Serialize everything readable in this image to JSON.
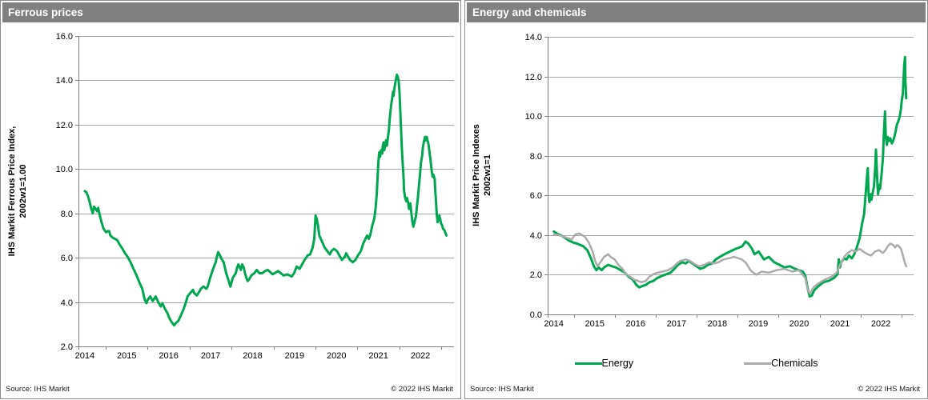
{
  "colors": {
    "header_bg": "#808080",
    "green": "#00A651",
    "gray": "#ABABAB",
    "grid": "#A6A6A6",
    "axis": "#808080"
  },
  "panels": [
    {
      "title": "Ferrous prices",
      "ylabel_line1": "IHS Markit Ferrous Price Index,",
      "ylabel_line2": "2002w1=1.00",
      "source": "Source:  IHS Markit",
      "copyright": "© 2022  IHS Markit"
    },
    {
      "title": "Energy and chemicals",
      "ylabel_line1": "IHS Markit Price Indexes",
      "ylabel_line2": "2002w1=1",
      "source": "Source:  IHS Markit",
      "copyright": "© 2022  IHS Markit"
    }
  ],
  "chart_data": [
    {
      "type": "line",
      "title": "Ferrous prices",
      "xlabel": "",
      "ylabel": "IHS Markit Ferrous Price Index, 2002w1=1.00",
      "xlim": [
        2013.85,
        2022.8
      ],
      "ylim": [
        2.0,
        16.0
      ],
      "yticks": [
        2,
        4,
        6,
        8,
        10,
        12,
        14,
        16
      ],
      "ytick_labels": [
        "2.0",
        "4.0",
        "6.0",
        "8.0",
        "10.0",
        "12.0",
        "14.0",
        "16.0"
      ],
      "xticks": [
        2014,
        2015,
        2016,
        2017,
        2018,
        2019,
        2020,
        2021,
        2022
      ],
      "xtick_labels": [
        "2014",
        "2015",
        "2016",
        "2017",
        "2018",
        "2019",
        "2020",
        "2021",
        "2022"
      ],
      "grid": true,
      "legend": null,
      "series": [
        {
          "name": "Ferrous price index",
          "color": "#00A651",
          "stroke_width": 3,
          "x": [
            2014.0,
            2014.04,
            2014.08,
            2014.12,
            2014.15,
            2014.19,
            2014.22,
            2014.26,
            2014.29,
            2014.32,
            2014.36,
            2014.4,
            2014.45,
            2014.51,
            2014.55,
            2014.58,
            2014.61,
            2014.67,
            2014.72,
            2014.77,
            2014.83,
            2014.9,
            2014.96,
            2015.02,
            2015.09,
            2015.15,
            2015.21,
            2015.28,
            2015.31,
            2015.37,
            2015.4,
            2015.43,
            2015.47,
            2015.5,
            2015.56,
            2015.62,
            2015.69,
            2015.75,
            2015.81,
            2015.85,
            2015.91,
            2015.97,
            2016.01,
            2016.07,
            2016.13,
            2016.17,
            2016.23,
            2016.29,
            2016.36,
            2016.42,
            2016.45,
            2016.51,
            2016.58,
            2016.61,
            2016.67,
            2016.74,
            2016.77,
            2016.83,
            2016.9,
            2016.93,
            2016.99,
            2017.05,
            2017.12,
            2017.15,
            2017.18,
            2017.21,
            2017.26,
            2017.31,
            2017.37,
            2017.44,
            2017.47,
            2017.5,
            2017.53,
            2017.6,
            2017.63,
            2017.66,
            2017.72,
            2017.75,
            2017.79,
            2017.82,
            2017.85,
            2017.88,
            2017.91,
            2017.97,
            2018.04,
            2018.1,
            2018.16,
            2018.23,
            2018.3,
            2018.36,
            2018.48,
            2018.61,
            2018.74,
            2018.83,
            2018.93,
            2018.99,
            2019.05,
            2019.12,
            2019.18,
            2019.24,
            2019.31,
            2019.37,
            2019.43,
            2019.47,
            2019.5,
            2019.53,
            2019.56,
            2019.59,
            2019.66,
            2019.72,
            2019.78,
            2019.84,
            2019.88,
            2019.94,
            2020.01,
            2020.07,
            2020.13,
            2020.2,
            2020.23,
            2020.26,
            2020.32,
            2020.39,
            2020.45,
            2020.51,
            2020.58,
            2020.64,
            2020.7,
            2020.73,
            2020.77,
            2020.8,
            2020.83,
            2020.86,
            2020.9,
            2020.93,
            2020.96,
            2020.98,
            2021.0,
            2021.02,
            2021.04,
            2021.06,
            2021.09,
            2021.1,
            2021.12,
            2021.14,
            2021.16,
            2021.18,
            2021.2,
            2021.22,
            2021.25,
            2021.27,
            2021.3,
            2021.33,
            2021.35,
            2021.36,
            2021.38,
            2021.4,
            2021.42,
            2021.44,
            2021.46,
            2021.48,
            2021.5,
            2021.52,
            2021.54,
            2021.56,
            2021.58,
            2021.6,
            2021.61,
            2021.63,
            2021.66,
            2021.68,
            2021.71,
            2021.73,
            2021.76,
            2021.78,
            2021.81,
            2021.83,
            2021.86,
            2021.89,
            2021.91,
            2021.94,
            2021.96,
            2021.99,
            2022.01,
            2022.04,
            2022.06,
            2022.09,
            2022.11,
            2022.13,
            2022.15,
            2022.16,
            2022.19,
            2022.21,
            2022.24,
            2022.27,
            2022.29,
            2022.31,
            2022.34,
            2022.35,
            2022.37,
            2022.39,
            2022.41,
            2022.43,
            2022.45,
            2022.47,
            2022.49,
            2022.52,
            2022.54,
            2022.57,
            2022.59,
            2022.62
          ],
          "y": [
            9.0,
            8.95,
            8.75,
            8.5,
            8.25,
            8.0,
            8.3,
            8.2,
            8.1,
            8.25,
            7.9,
            7.6,
            7.3,
            7.15,
            7.2,
            7.2,
            7.0,
            6.9,
            6.85,
            6.8,
            6.6,
            6.4,
            6.2,
            6.05,
            5.8,
            5.55,
            5.3,
            5.0,
            4.85,
            4.6,
            4.35,
            4.1,
            3.95,
            4.1,
            4.25,
            4.05,
            4.25,
            4.0,
            3.8,
            3.95,
            3.7,
            3.5,
            3.3,
            3.1,
            2.95,
            3.05,
            3.15,
            3.4,
            3.7,
            4.05,
            4.25,
            4.4,
            4.55,
            4.4,
            4.3,
            4.5,
            4.6,
            4.7,
            4.6,
            4.7,
            5.1,
            5.45,
            5.8,
            6.05,
            6.25,
            6.15,
            5.95,
            5.8,
            5.3,
            4.9,
            4.7,
            4.9,
            5.1,
            5.3,
            5.55,
            5.7,
            5.45,
            5.7,
            5.55,
            5.3,
            5.1,
            4.95,
            5.0,
            5.2,
            5.3,
            5.45,
            5.3,
            5.3,
            5.4,
            5.45,
            5.25,
            5.4,
            5.2,
            5.25,
            5.15,
            5.3,
            5.6,
            5.5,
            5.7,
            5.9,
            6.1,
            6.15,
            6.45,
            6.85,
            7.9,
            7.75,
            7.45,
            7.0,
            6.7,
            6.45,
            6.3,
            6.15,
            6.3,
            6.4,
            6.3,
            6.1,
            5.9,
            6.05,
            6.2,
            6.1,
            5.9,
            5.8,
            5.9,
            6.1,
            6.3,
            6.65,
            6.9,
            7.0,
            6.85,
            7.0,
            7.25,
            7.5,
            7.75,
            8.2,
            8.9,
            9.65,
            10.4,
            10.75,
            10.55,
            10.85,
            10.7,
            11.0,
            11.2,
            10.85,
            11.1,
            11.3,
            11.05,
            11.35,
            11.8,
            12.3,
            12.85,
            13.25,
            13.5,
            13.3,
            13.65,
            13.85,
            14.1,
            14.25,
            14.15,
            14.0,
            13.5,
            12.65,
            11.7,
            10.85,
            10.15,
            9.55,
            9.05,
            8.75,
            8.55,
            8.7,
            8.45,
            8.2,
            8.45,
            8.1,
            7.6,
            7.4,
            7.6,
            7.85,
            8.2,
            8.7,
            9.15,
            9.75,
            10.25,
            10.6,
            11.0,
            11.3,
            11.45,
            11.3,
            11.45,
            11.35,
            11.15,
            10.85,
            10.4,
            9.9,
            9.65,
            9.75,
            9.55,
            9.15,
            8.55,
            7.95,
            7.6,
            7.75,
            7.9,
            7.75,
            7.55,
            7.45,
            7.3,
            7.25,
            7.15,
            7.0
          ]
        }
      ]
    },
    {
      "type": "line",
      "title": "Energy and chemicals",
      "xlabel": "",
      "ylabel": "IHS Markit Price Indexes 2002w1=1",
      "xlim": [
        2013.85,
        2022.8
      ],
      "ylim": [
        0.0,
        14.0
      ],
      "yticks": [
        0,
        2,
        4,
        6,
        8,
        10,
        12,
        14
      ],
      "ytick_labels": [
        "0.0",
        "2.0",
        "4.0",
        "6.0",
        "8.0",
        "10.0",
        "12.0",
        "14.0"
      ],
      "xticks": [
        2014,
        2015,
        2016,
        2017,
        2018,
        2019,
        2020,
        2021,
        2022
      ],
      "xtick_labels": [
        "2014",
        "2015",
        "2016",
        "2017",
        "2018",
        "2019",
        "2020",
        "2021",
        "2022"
      ],
      "grid": true,
      "legend": "bottom",
      "series": [
        {
          "name": "Energy",
          "color": "#00A651",
          "stroke_width": 3,
          "x": [
            2014.0,
            2014.1,
            2014.18,
            2014.28,
            2014.38,
            2014.48,
            2014.57,
            2014.65,
            2014.72,
            2014.82,
            2014.91,
            2014.98,
            2015.04,
            2015.1,
            2015.17,
            2015.23,
            2015.33,
            2015.42,
            2015.52,
            2015.64,
            2015.74,
            2015.83,
            2015.93,
            2016.02,
            2016.09,
            2016.15,
            2016.25,
            2016.34,
            2016.44,
            2016.53,
            2016.66,
            2016.76,
            2016.85,
            2016.95,
            2017.04,
            2017.14,
            2017.23,
            2017.3,
            2017.39,
            2017.49,
            2017.58,
            2017.68,
            2017.77,
            2017.87,
            2017.96,
            2018.06,
            2018.18,
            2018.31,
            2018.44,
            2018.53,
            2018.61,
            2018.69,
            2018.76,
            2018.85,
            2018.91,
            2019.01,
            2019.14,
            2019.26,
            2019.39,
            2019.52,
            2019.64,
            2019.77,
            2019.9,
            2019.99,
            2020.09,
            2020.15,
            2020.21,
            2020.26,
            2020.31,
            2020.37,
            2020.47,
            2020.59,
            2020.72,
            2020.85,
            2020.94,
            2020.97,
            2021.0,
            2021.03,
            2021.1,
            2021.16,
            2021.22,
            2021.29,
            2021.35,
            2021.41,
            2021.48,
            2021.54,
            2021.59,
            2021.62,
            2021.66,
            2021.68,
            2021.7,
            2021.72,
            2021.75,
            2021.77,
            2021.8,
            2021.83,
            2021.86,
            2021.88,
            2021.91,
            2021.93,
            2021.96,
            2021.98,
            2022.01,
            2022.05,
            2022.07,
            2022.1,
            2022.12,
            2022.15,
            2022.17,
            2022.2,
            2022.23,
            2022.27,
            2022.3,
            2022.33,
            2022.36,
            2022.39,
            2022.43,
            2022.46,
            2022.49,
            2022.51,
            2022.54,
            2022.55,
            2022.57,
            2022.59,
            2022.6,
            2022.62
          ],
          "y": [
            4.18,
            4.05,
            3.98,
            3.85,
            3.71,
            3.62,
            3.57,
            3.5,
            3.44,
            3.24,
            2.83,
            2.43,
            2.23,
            2.37,
            2.23,
            2.37,
            2.5,
            2.43,
            2.37,
            2.23,
            2.1,
            1.9,
            1.76,
            1.49,
            1.36,
            1.42,
            1.49,
            1.62,
            1.69,
            1.83,
            1.96,
            2.03,
            2.1,
            2.3,
            2.5,
            2.63,
            2.57,
            2.7,
            2.57,
            2.43,
            2.3,
            2.37,
            2.5,
            2.57,
            2.77,
            2.9,
            3.04,
            3.17,
            3.3,
            3.37,
            3.44,
            3.67,
            3.57,
            3.3,
            3.04,
            3.17,
            2.77,
            2.9,
            2.63,
            2.5,
            2.37,
            2.43,
            2.3,
            2.23,
            2.16,
            1.96,
            1.29,
            0.9,
            0.95,
            1.22,
            1.42,
            1.62,
            1.69,
            1.83,
            2.03,
            2.77,
            2.37,
            2.63,
            2.83,
            2.77,
            2.97,
            2.83,
            3.04,
            3.37,
            3.84,
            4.58,
            5.05,
            5.86,
            6.94,
            7.37,
            6.06,
            5.66,
            6.06,
            5.79,
            6.13,
            6.46,
            7.34,
            8.31,
            6.8,
            6.06,
            6.53,
            6.33,
            6.94,
            7.87,
            8.95,
            10.23,
            8.95,
            8.55,
            8.95,
            8.75,
            8.88,
            8.62,
            8.75,
            8.95,
            9.22,
            9.56,
            9.76,
            9.96,
            10.36,
            10.77,
            11.17,
            11.64,
            12.58,
            12.98,
            11.77,
            10.9
          ]
        },
        {
          "name": "Chemicals",
          "color": "#ABABAB",
          "stroke_width": 2.5,
          "x": [
            2014.0,
            2014.12,
            2014.25,
            2014.44,
            2014.53,
            2014.63,
            2014.76,
            2014.85,
            2014.95,
            2015.01,
            2015.07,
            2015.14,
            2015.23,
            2015.33,
            2015.39,
            2015.49,
            2015.58,
            2015.68,
            2015.77,
            2015.87,
            2015.96,
            2016.06,
            2016.15,
            2016.25,
            2016.34,
            2016.44,
            2016.53,
            2016.66,
            2016.79,
            2016.91,
            2017.01,
            2017.1,
            2017.23,
            2017.33,
            2017.42,
            2017.55,
            2017.68,
            2017.8,
            2017.93,
            2018.03,
            2018.15,
            2018.28,
            2018.41,
            2018.6,
            2018.7,
            2018.82,
            2018.95,
            2019.08,
            2019.26,
            2019.45,
            2019.64,
            2019.83,
            2019.99,
            2020.05,
            2020.15,
            2020.21,
            2020.27,
            2020.35,
            2020.47,
            2020.63,
            2020.79,
            2020.92,
            2021.0,
            2021.1,
            2021.19,
            2021.29,
            2021.38,
            2021.48,
            2021.57,
            2021.67,
            2021.76,
            2021.86,
            2021.95,
            2022.05,
            2022.11,
            2022.17,
            2022.23,
            2022.3,
            2022.35,
            2022.39,
            2022.44,
            2022.49,
            2022.54,
            2022.59,
            2022.62
          ],
          "y": [
            4.04,
            4.0,
            3.91,
            3.78,
            4.04,
            4.08,
            3.91,
            3.64,
            3.17,
            2.7,
            2.43,
            2.63,
            2.9,
            3.04,
            2.9,
            2.77,
            2.5,
            2.3,
            2.03,
            1.9,
            1.76,
            1.69,
            1.62,
            1.69,
            1.9,
            2.03,
            2.1,
            2.16,
            2.23,
            2.37,
            2.57,
            2.7,
            2.77,
            2.7,
            2.57,
            2.43,
            2.5,
            2.63,
            2.57,
            2.63,
            2.77,
            2.83,
            2.9,
            2.77,
            2.6,
            2.2,
            2.0,
            2.16,
            2.1,
            2.23,
            2.3,
            2.16,
            2.23,
            2.1,
            1.83,
            1.22,
            1.05,
            1.36,
            1.56,
            1.76,
            1.9,
            2.1,
            2.5,
            2.9,
            3.1,
            3.24,
            3.17,
            3.31,
            3.17,
            3.04,
            2.97,
            3.17,
            3.24,
            3.1,
            3.24,
            3.44,
            3.57,
            3.5,
            3.37,
            3.5,
            3.44,
            3.31,
            2.97,
            2.57,
            2.43
          ]
        }
      ]
    }
  ]
}
